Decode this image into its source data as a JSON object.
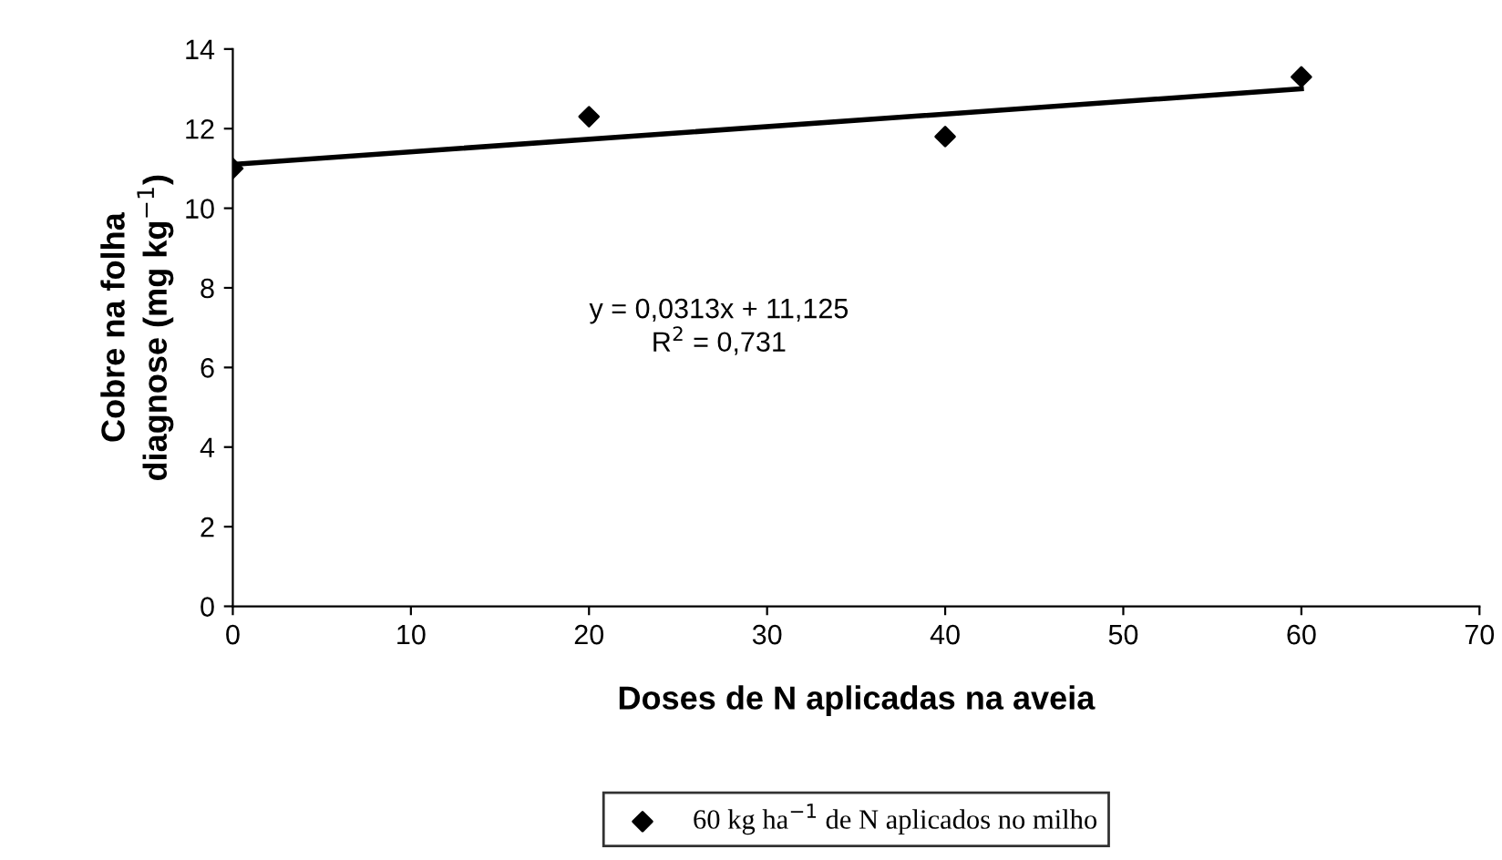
{
  "chart_data": {
    "type": "scatter",
    "xlabel": "Doses de N aplicadas na aveia",
    "ylabel": "Cobre na folha\ndiagnose (mg kg$^{−1}$)",
    "series": [
      {
        "name": "60 kg ha$^{−1}$ de N aplicados no milho",
        "color": "#000000",
        "x": [
          0,
          20,
          40,
          60
        ],
        "values": [
          11.0,
          12.3,
          11.8,
          13.3
        ],
        "marker": "diamond"
      },
      {
        "type": "line",
        "color": "#000000",
        "x": [
          0,
          60
        ],
        "values": [
          11.1,
          13.0
        ],
        "marker": "none",
        "line_style": "solid"
      }
    ],
    "xlim": [
      0,
      70
    ],
    "xticks": [
      0,
      10,
      20,
      30,
      40,
      50,
      60,
      70
    ],
    "ylim": [
      0,
      14
    ],
    "yticks": [
      0,
      2,
      4,
      6,
      8,
      10,
      12,
      14
    ],
    "annotations": [
      "y = 0,0313x + 11,125\nR$^{2}$ = 0,731"
    ],
    "grid": false,
    "legend": "bottom"
  }
}
